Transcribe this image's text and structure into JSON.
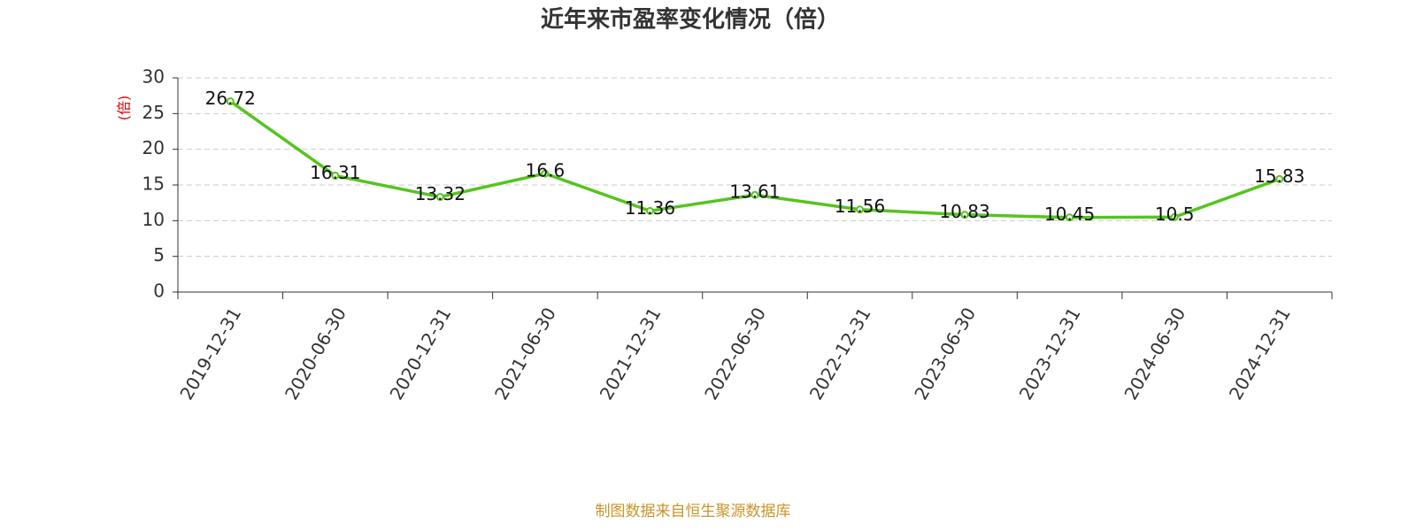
{
  "chart_data": {
    "type": "line",
    "title": "近年来市盈率变化情况（倍）",
    "y_label": "(倍)",
    "source": "制图数据来自恒生聚源数据库",
    "categories": [
      "2019-12-31",
      "2020-06-30",
      "2020-12-31",
      "2021-06-30",
      "2021-12-31",
      "2022-06-30",
      "2022-12-31",
      "2023-06-30",
      "2023-12-31",
      "2024-06-30",
      "2024-12-31"
    ],
    "values": [
      26.72,
      16.31,
      13.32,
      16.6,
      11.36,
      13.61,
      11.56,
      10.83,
      10.45,
      10.5,
      15.83
    ],
    "color": "#55c41e",
    "ylim": [
      0,
      30
    ],
    "yticks": [
      0,
      5,
      10,
      15,
      20,
      25,
      30
    ],
    "grid": true
  }
}
